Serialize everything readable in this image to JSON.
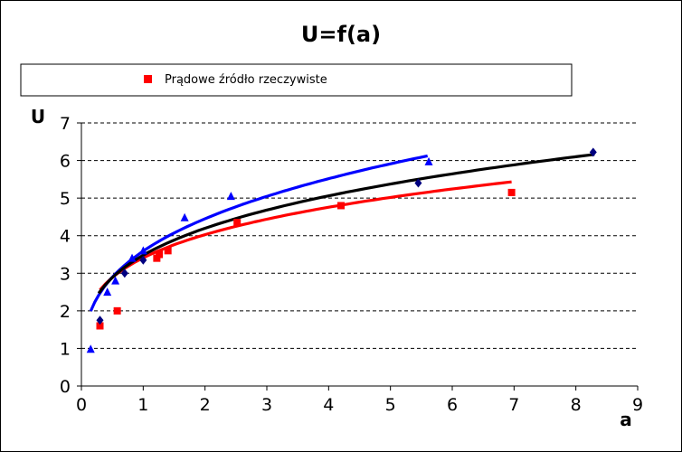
{
  "chart_data": {
    "type": "scatter",
    "title": "U=f(a)",
    "xlabel": "a",
    "ylabel": "U",
    "xlim": [
      0,
      9
    ],
    "ylim": [
      0,
      7
    ],
    "x_ticks": [
      0,
      1,
      2,
      3,
      4,
      5,
      6,
      7,
      8,
      9
    ],
    "y_ticks": [
      0,
      1,
      2,
      3,
      4,
      5,
      6,
      7
    ],
    "grid": "horizontal dashed",
    "legend": {
      "position": "top",
      "entries": [
        "Prądowe źródło rzeczywiste"
      ]
    },
    "series": [
      {
        "name": "Prądowe źródło rzeczywiste",
        "color": "#ff0000",
        "marker": "square",
        "points": [
          {
            "x": 0.3,
            "y": 1.6
          },
          {
            "x": 0.58,
            "y": 2.0
          },
          {
            "x": 1.22,
            "y": 3.4
          },
          {
            "x": 1.26,
            "y": 3.5
          },
          {
            "x": 1.4,
            "y": 3.6
          },
          {
            "x": 2.52,
            "y": 4.35
          },
          {
            "x": 4.2,
            "y": 4.8
          },
          {
            "x": 6.96,
            "y": 5.15
          }
        ],
        "trend_color": "#ff0000",
        "trend": {
          "from": 0.3,
          "to": 6.96,
          "a": 3.41,
          "b": 0.24
        }
      },
      {
        "color": "#0000ff",
        "marker": "triangle",
        "points": [
          {
            "x": 0.15,
            "y": 0.98
          },
          {
            "x": 0.42,
            "y": 2.5
          },
          {
            "x": 0.55,
            "y": 2.8
          },
          {
            "x": 0.82,
            "y": 3.4
          },
          {
            "x": 1.0,
            "y": 3.6
          },
          {
            "x": 1.67,
            "y": 4.48
          },
          {
            "x": 2.42,
            "y": 5.05
          },
          {
            "x": 5.62,
            "y": 5.97
          }
        ],
        "trend_color": "#0000ff",
        "trend": {
          "from": 0.15,
          "to": 5.6,
          "a": 3.59,
          "b": 0.31
        }
      },
      {
        "color": "#000080",
        "marker": "diamond",
        "points": [
          {
            "x": 0.3,
            "y": 1.75
          },
          {
            "x": 0.7,
            "y": 3.0
          },
          {
            "x": 1.0,
            "y": 3.35
          },
          {
            "x": 5.45,
            "y": 5.4
          },
          {
            "x": 8.28,
            "y": 6.22
          }
        ],
        "trend_color": "#000000",
        "trend": {
          "from": 0.28,
          "to": 8.3,
          "a": 3.48,
          "b": 0.27
        }
      }
    ]
  }
}
